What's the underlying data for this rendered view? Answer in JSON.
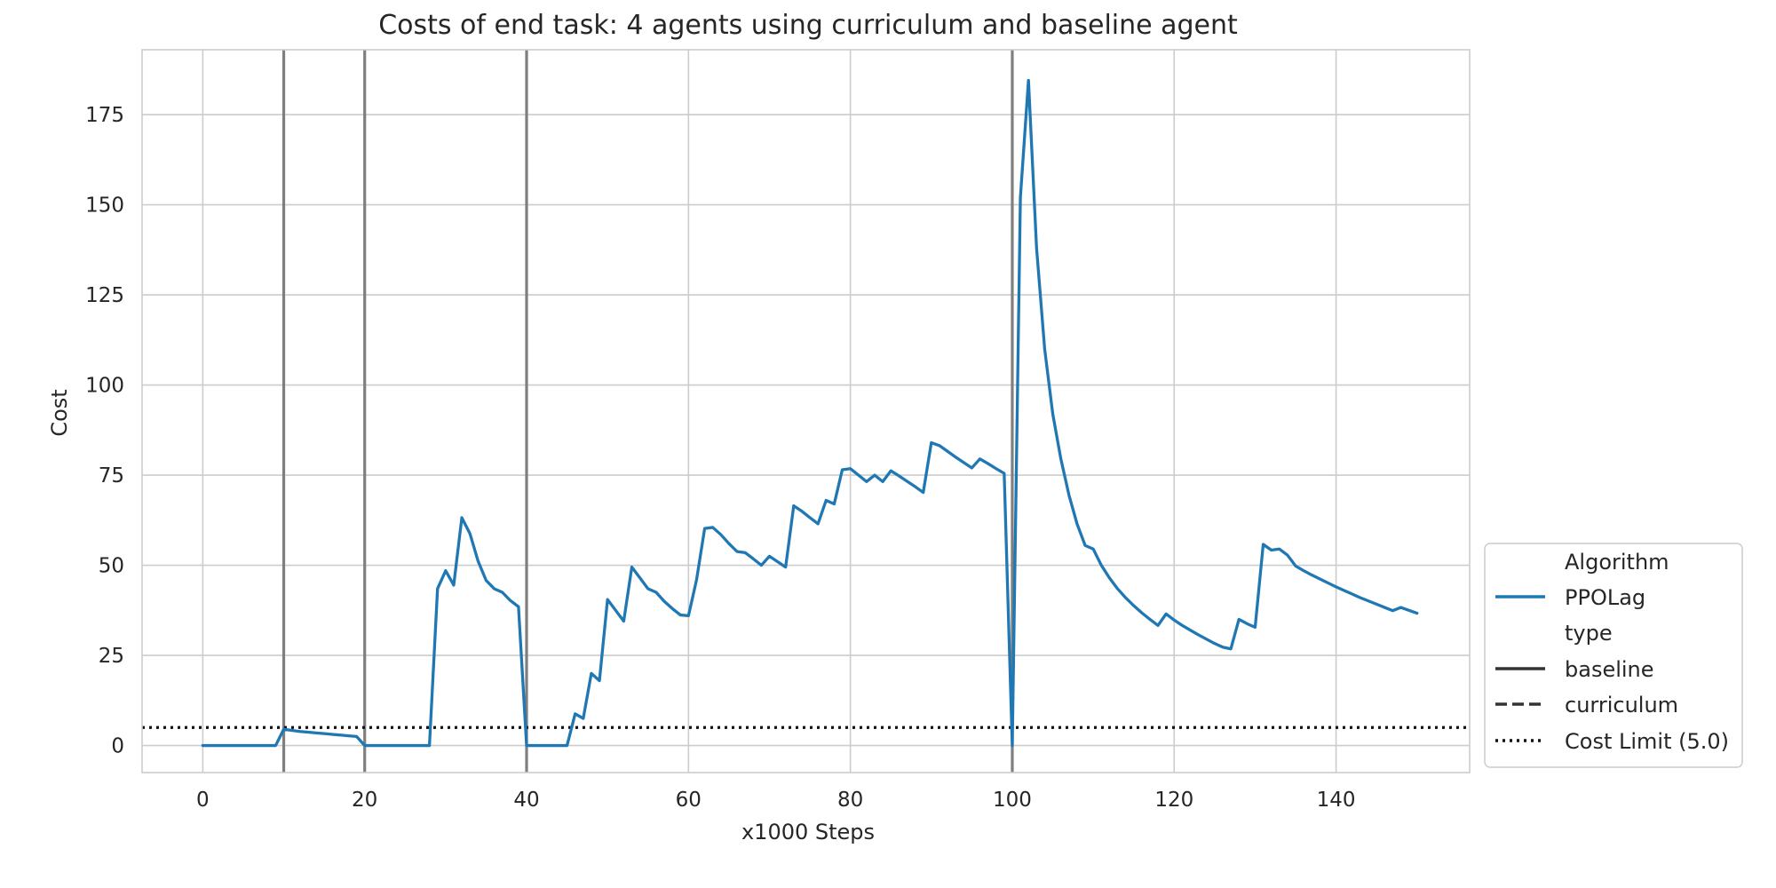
{
  "chart_data": {
    "type": "line",
    "title": "Costs of end task: 4 agents using curriculum and baseline agent",
    "xlabel": "x1000 Steps",
    "ylabel": "Cost",
    "xlim": [
      -7.5,
      156.5
    ],
    "ylim": [
      -7.5,
      193
    ],
    "xticks": [
      0,
      20,
      40,
      60,
      80,
      100,
      120,
      140
    ],
    "yticks": [
      0,
      25,
      50,
      75,
      100,
      125,
      150,
      175
    ],
    "grid": true,
    "legend_position": "lower-right",
    "legend": {
      "hue_title": "Algorithm",
      "style_title": "type",
      "entries": [
        {
          "label": "PPOLag",
          "style": "solid",
          "color": "#1f77b4"
        },
        {
          "label": "baseline",
          "style": "solid",
          "color": "#333333"
        },
        {
          "label": "curriculum",
          "style": "dashed",
          "color": "#333333"
        },
        {
          "label": "Cost Limit (5.0)",
          "style": "dotted",
          "color": "#111111"
        }
      ]
    },
    "vertical_lines": [
      10,
      20,
      40,
      100
    ],
    "vertical_line_color": "#7f7f7f",
    "cost_limit": 5.0,
    "series": [
      {
        "name": "PPOLag",
        "type": "baseline",
        "color": "#1f77b4",
        "points": [
          [
            0,
            0
          ],
          [
            1,
            0
          ],
          [
            2,
            0
          ],
          [
            3,
            0
          ],
          [
            4,
            0
          ],
          [
            5,
            0
          ],
          [
            6,
            0
          ],
          [
            7,
            0
          ],
          [
            8,
            0
          ],
          [
            9,
            0
          ],
          [
            10,
            4.5
          ],
          [
            11,
            4.2
          ],
          [
            12,
            3.9
          ],
          [
            13,
            3.7
          ],
          [
            14,
            3.5
          ],
          [
            15,
            3.3
          ],
          [
            16,
            3.1
          ],
          [
            17,
            2.9
          ],
          [
            18,
            2.7
          ],
          [
            19,
            2.5
          ],
          [
            20,
            0
          ],
          [
            21,
            0
          ],
          [
            22,
            0
          ],
          [
            23,
            0
          ],
          [
            24,
            0
          ],
          [
            25,
            0
          ],
          [
            26,
            0
          ],
          [
            27,
            0
          ],
          [
            28,
            0
          ],
          [
            29,
            43.5
          ],
          [
            30,
            48.5
          ],
          [
            31,
            44.5
          ],
          [
            32,
            63.2
          ],
          [
            33,
            58.8
          ],
          [
            34,
            51.2
          ],
          [
            35,
            45.8
          ],
          [
            36,
            43.5
          ],
          [
            37,
            42.5
          ],
          [
            38,
            40.2
          ],
          [
            39,
            38.5
          ],
          [
            40,
            0
          ],
          [
            41,
            0
          ],
          [
            42,
            0
          ],
          [
            43,
            0
          ],
          [
            44,
            0
          ],
          [
            45,
            0
          ],
          [
            46,
            8.8
          ],
          [
            47,
            7.5
          ],
          [
            48,
            20.0
          ],
          [
            49,
            18.0
          ],
          [
            50,
            40.5
          ],
          [
            51,
            37.5
          ],
          [
            52,
            34.5
          ],
          [
            53,
            49.5
          ],
          [
            54,
            46.5
          ],
          [
            55,
            43.5
          ],
          [
            56,
            42.5
          ],
          [
            57,
            40.0
          ],
          [
            58,
            38.0
          ],
          [
            59,
            36.2
          ],
          [
            60,
            36.0
          ],
          [
            61,
            46.0
          ],
          [
            62,
            60.2
          ],
          [
            63,
            60.5
          ],
          [
            64,
            58.5
          ],
          [
            65,
            56.0
          ],
          [
            66,
            53.8
          ],
          [
            67,
            53.5
          ],
          [
            68,
            51.8
          ],
          [
            69,
            50.0
          ],
          [
            70,
            52.5
          ],
          [
            71,
            51.0
          ],
          [
            72,
            49.5
          ],
          [
            73,
            66.5
          ],
          [
            74,
            65.0
          ],
          [
            75,
            63.2
          ],
          [
            76,
            61.5
          ],
          [
            77,
            68.0
          ],
          [
            78,
            67.0
          ],
          [
            79,
            76.5
          ],
          [
            80,
            76.8
          ],
          [
            81,
            75.0
          ],
          [
            82,
            73.2
          ],
          [
            83,
            75.0
          ],
          [
            84,
            73.2
          ],
          [
            85,
            76.2
          ],
          [
            86,
            74.8
          ],
          [
            87,
            73.3
          ],
          [
            88,
            71.8
          ],
          [
            89,
            70.2
          ],
          [
            90,
            84.0
          ],
          [
            91,
            83.2
          ],
          [
            92,
            81.6
          ],
          [
            93,
            80.0
          ],
          [
            94,
            78.5
          ],
          [
            95,
            77.0
          ],
          [
            96,
            79.5
          ],
          [
            97,
            78.2
          ],
          [
            98,
            76.8
          ],
          [
            99,
            75.5
          ],
          [
            100,
            0
          ],
          [
            101,
            152.0
          ],
          [
            102,
            184.5
          ],
          [
            103,
            138.0
          ],
          [
            104,
            110.0
          ],
          [
            105,
            92.0
          ],
          [
            106,
            79.5
          ],
          [
            107,
            69.5
          ],
          [
            108,
            61.5
          ],
          [
            109,
            55.5
          ],
          [
            110,
            54.5
          ],
          [
            111,
            50.0
          ],
          [
            112,
            46.5
          ],
          [
            113,
            43.5
          ],
          [
            114,
            41.0
          ],
          [
            115,
            38.8
          ],
          [
            116,
            36.8
          ],
          [
            117,
            35.0
          ],
          [
            118,
            33.3
          ],
          [
            119,
            36.5
          ],
          [
            120,
            34.8
          ],
          [
            121,
            33.3
          ],
          [
            122,
            32.0
          ],
          [
            123,
            30.7
          ],
          [
            124,
            29.5
          ],
          [
            125,
            28.3
          ],
          [
            126,
            27.3
          ],
          [
            127,
            26.8
          ],
          [
            128,
            35.0
          ],
          [
            129,
            33.8
          ],
          [
            130,
            32.8
          ],
          [
            131,
            55.8
          ],
          [
            132,
            54.2
          ],
          [
            133,
            54.5
          ],
          [
            134,
            52.8
          ],
          [
            135,
            49.8
          ],
          [
            136,
            48.5
          ],
          [
            137,
            47.3
          ],
          [
            138,
            46.2
          ],
          [
            139,
            45.1
          ],
          [
            140,
            44.0
          ],
          [
            141,
            43.0
          ],
          [
            142,
            42.0
          ],
          [
            143,
            41.0
          ],
          [
            144,
            40.1
          ],
          [
            145,
            39.2
          ],
          [
            146,
            38.3
          ],
          [
            147,
            37.4
          ],
          [
            148,
            38.3
          ],
          [
            149,
            37.5
          ],
          [
            150,
            36.7
          ]
        ]
      }
    ]
  }
}
